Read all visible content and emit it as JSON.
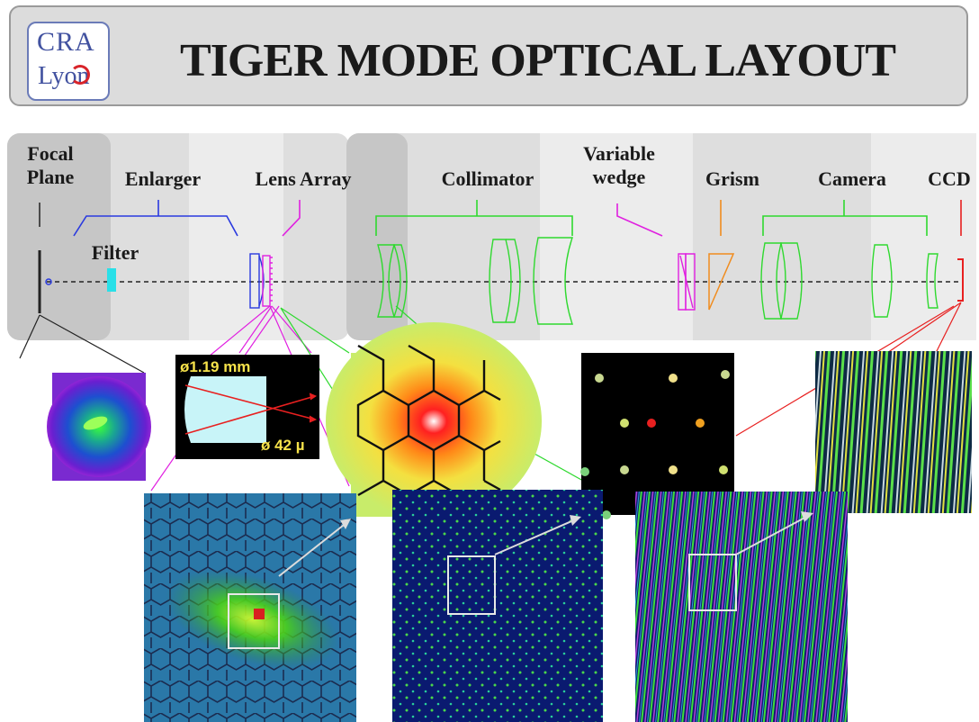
{
  "header": {
    "title": "TIGER MODE OPTICAL LAYOUT",
    "logo_line1": "CRA",
    "logo_line2": "Lyon"
  },
  "components": {
    "focal_plane": "Focal\nPlane",
    "enlarger": "Enlarger",
    "lens_array": "Lens Array",
    "collimator": "Collimator",
    "variable_wedge": "Variable\nwedge",
    "grism": "Grism",
    "camera": "Camera",
    "ccd": "CCD",
    "filter": "Filter"
  },
  "lenslet_inset": {
    "diameter": "ø1.19 mm",
    "spot": "ø 42 µ"
  },
  "colors": {
    "enlarger": "#2a3adf",
    "lens_array": "#e020e0",
    "collimator": "#2fd92f",
    "grism": "#f08c1e",
    "ccd": "#e82020",
    "filter": "#29e0e8",
    "shading_dark": "#c8c8c8",
    "shading_light": "#ececec"
  }
}
